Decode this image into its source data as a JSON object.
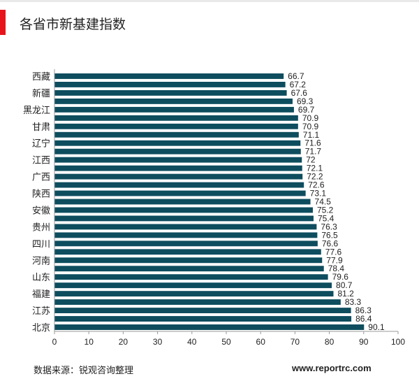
{
  "header": {
    "title": "各省市新基建指数"
  },
  "footer": {
    "source": "数据来源：锐观咨询整理",
    "site": "www.reportrc.com"
  },
  "colors": {
    "bar": "#0d4d5e",
    "accent": "#e8141b"
  },
  "chart_data": {
    "type": "bar",
    "orientation": "horizontal",
    "title": "各省市新基建指数",
    "xlabel": "",
    "ylabel": "",
    "xlim": [
      0,
      100
    ],
    "xticks": [
      0,
      10,
      20,
      30,
      40,
      50,
      60,
      70,
      80,
      90,
      100
    ],
    "category_labels": [
      {
        "label": "西藏",
        "index": 0
      },
      {
        "label": "新疆",
        "index": 2
      },
      {
        "label": "黑龙江",
        "index": 4
      },
      {
        "label": "甘肃",
        "index": 6
      },
      {
        "label": "辽宁",
        "index": 8
      },
      {
        "label": "江西",
        "index": 10
      },
      {
        "label": "广西",
        "index": 12
      },
      {
        "label": "陕西",
        "index": 14
      },
      {
        "label": "安徽",
        "index": 16
      },
      {
        "label": "贵州",
        "index": 18
      },
      {
        "label": "四川",
        "index": 20
      },
      {
        "label": "河南",
        "index": 22
      },
      {
        "label": "山东",
        "index": 24
      },
      {
        "label": "福建",
        "index": 26
      },
      {
        "label": "江苏",
        "index": 28
      },
      {
        "label": "北京",
        "index": 30
      }
    ],
    "values": [
      "66.7",
      "67.2",
      "67.6",
      "69.3",
      "69.7",
      "70.9",
      "70.9",
      "71.1",
      "71.6",
      "71.7",
      "72",
      "72.1",
      "72.2",
      "72.6",
      "73.1",
      "74.5",
      "75.2",
      "75.4",
      "76.3",
      "76.5",
      "76.6",
      "77.6",
      "77.9",
      "78.4",
      "79.6",
      "80.7",
      "81.2",
      "83.3",
      "86.3",
      "86.4",
      "90.1"
    ],
    "grid": false,
    "legend": "none"
  }
}
